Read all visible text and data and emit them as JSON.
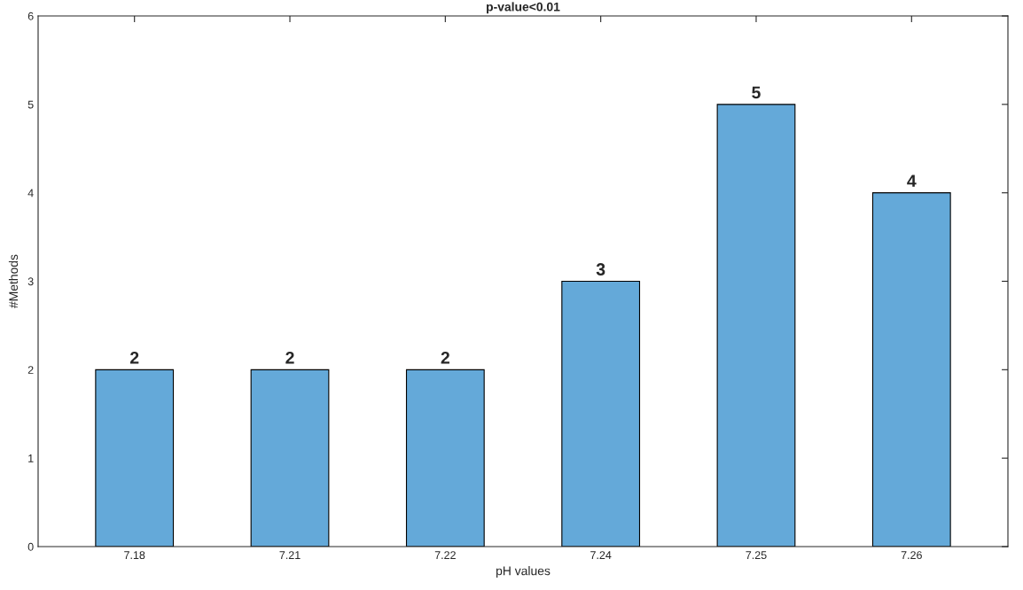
{
  "chart_data": {
    "type": "bar",
    "title": "p-value<0.01",
    "xlabel": "pH values",
    "ylabel": "#Methods",
    "categories": [
      "7.18",
      "7.21",
      "7.22",
      "7.24",
      "7.25",
      "7.26"
    ],
    "values": [
      2,
      2,
      2,
      3,
      5,
      4
    ],
    "color": "#64a9d9",
    "ylim": [
      0,
      6
    ],
    "yticks": [
      0,
      1,
      2,
      3,
      4,
      5,
      6
    ],
    "data_labels": true,
    "grid": false,
    "legend": false
  }
}
